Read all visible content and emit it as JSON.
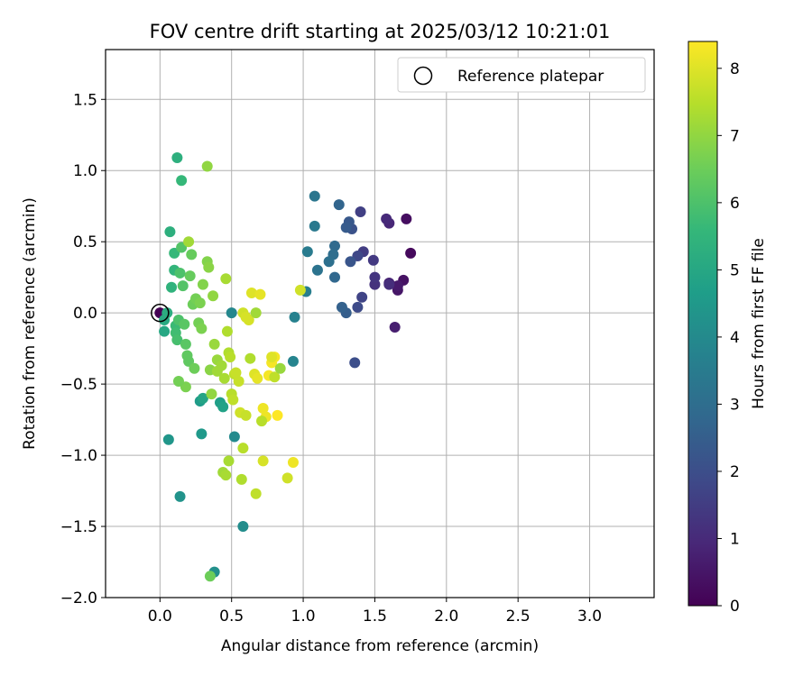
{
  "chart_data": {
    "type": "scatter",
    "title": "FOV centre drift starting at 2025/03/12 10:21:01",
    "xlabel": "Angular distance from reference (arcmin)",
    "ylabel": "Rotation from reference (arcmin)",
    "xlim": [
      -0.38,
      3.45
    ],
    "ylim": [
      -2.0,
      1.85
    ],
    "xticks": [
      0.0,
      0.5,
      1.0,
      1.5,
      2.0,
      2.5,
      3.0
    ],
    "xtick_labels": [
      "0.0",
      "0.5",
      "1.0",
      "1.5",
      "2.0",
      "2.5",
      "3.0"
    ],
    "yticks": [
      -2.0,
      -1.5,
      -1.0,
      -0.5,
      0.0,
      0.5,
      1.0,
      1.5
    ],
    "ytick_labels": [
      "−2.0",
      "−1.5",
      "−1.0",
      "−0.5",
      "0.0",
      "0.5",
      "1.0",
      "1.5"
    ],
    "grid": true,
    "legend": {
      "placement": "top-right",
      "entries": [
        {
          "label": "Reference platepar",
          "marker": "open-circle"
        }
      ]
    },
    "reference_point": [
      0.0,
      0.0
    ],
    "colorbar": {
      "label": "Hours from first FF file",
      "colormap": "viridis",
      "range": [
        0,
        8.4
      ],
      "ticks": [
        0,
        1,
        2,
        3,
        4,
        5,
        6,
        7,
        8
      ],
      "tick_labels": [
        "0",
        "1",
        "2",
        "3",
        "4",
        "5",
        "6",
        "7",
        "8"
      ]
    },
    "series": [
      {
        "points": [
          [
            0.0,
            0.0,
            0.0
          ],
          [
            1.75,
            0.42,
            0.2
          ],
          [
            1.72,
            0.66,
            0.3
          ],
          [
            1.7,
            0.23,
            0.4
          ],
          [
            1.66,
            0.16,
            0.5
          ],
          [
            1.66,
            0.19,
            0.6
          ],
          [
            1.64,
            -0.1,
            0.7
          ],
          [
            1.6,
            0.21,
            0.8
          ],
          [
            1.6,
            0.63,
            0.9
          ],
          [
            1.58,
            0.66,
            1.0
          ],
          [
            1.6,
            0.2,
            1.1
          ],
          [
            1.5,
            0.2,
            1.2
          ],
          [
            1.5,
            0.25,
            1.3
          ],
          [
            1.49,
            0.37,
            1.4
          ],
          [
            1.42,
            0.43,
            1.5
          ],
          [
            1.4,
            0.71,
            1.6
          ],
          [
            1.41,
            0.11,
            1.7
          ],
          [
            1.38,
            0.4,
            1.8
          ],
          [
            1.38,
            0.04,
            1.9
          ],
          [
            1.36,
            -0.35,
            2.0
          ],
          [
            1.34,
            0.59,
            2.1
          ],
          [
            1.33,
            0.36,
            2.2
          ],
          [
            1.32,
            0.64,
            2.3
          ],
          [
            1.3,
            0.6,
            2.4
          ],
          [
            1.3,
            0.0,
            2.5
          ],
          [
            1.27,
            0.04,
            2.6
          ],
          [
            1.25,
            0.76,
            2.7
          ],
          [
            1.22,
            0.25,
            2.8
          ],
          [
            1.22,
            0.47,
            2.9
          ],
          [
            1.21,
            0.41,
            3.0
          ],
          [
            1.18,
            0.36,
            3.1
          ],
          [
            1.1,
            0.3,
            3.2
          ],
          [
            1.08,
            0.82,
            3.3
          ],
          [
            1.08,
            0.61,
            3.4
          ],
          [
            1.03,
            0.43,
            3.5
          ],
          [
            1.02,
            0.15,
            3.6
          ],
          [
            0.94,
            -0.03,
            3.7
          ],
          [
            0.93,
            -0.34,
            3.8
          ],
          [
            0.5,
            0.0,
            3.9
          ],
          [
            0.52,
            -0.87,
            4.0
          ],
          [
            0.58,
            -1.5,
            4.1
          ],
          [
            0.38,
            -1.82,
            4.2
          ],
          [
            0.14,
            -1.29,
            4.3
          ],
          [
            0.06,
            -0.89,
            4.4
          ],
          [
            0.29,
            -0.85,
            4.5
          ],
          [
            0.28,
            -0.62,
            4.6
          ],
          [
            0.42,
            -0.63,
            4.7
          ],
          [
            0.44,
            -0.66,
            4.8
          ],
          [
            0.3,
            -0.6,
            4.9
          ],
          [
            0.03,
            -0.13,
            5.0
          ],
          [
            0.03,
            -0.05,
            5.1
          ],
          [
            0.05,
            0.0,
            5.2
          ],
          [
            0.07,
            0.57,
            5.3
          ],
          [
            0.08,
            0.18,
            5.4
          ],
          [
            0.1,
            0.3,
            5.5
          ],
          [
            0.1,
            0.42,
            5.6
          ],
          [
            0.11,
            -0.09,
            5.7
          ],
          [
            0.11,
            -0.14,
            5.8
          ],
          [
            0.12,
            -0.19,
            5.9
          ],
          [
            0.13,
            -0.05,
            6.0
          ],
          [
            0.14,
            0.28,
            6.0
          ],
          [
            0.15,
            0.46,
            6.1
          ],
          [
            0.16,
            0.19,
            6.1
          ],
          [
            0.17,
            -0.08,
            6.2
          ],
          [
            0.18,
            -0.22,
            6.2
          ],
          [
            0.19,
            -0.3,
            6.3
          ],
          [
            0.2,
            -0.34,
            6.3
          ],
          [
            0.21,
            0.26,
            6.4
          ],
          [
            0.22,
            0.41,
            6.4
          ],
          [
            0.23,
            0.06,
            6.5
          ],
          [
            0.24,
            -0.39,
            6.5
          ],
          [
            0.25,
            0.1,
            6.6
          ],
          [
            0.27,
            -0.07,
            6.6
          ],
          [
            0.28,
            0.07,
            6.7
          ],
          [
            0.29,
            -0.11,
            6.7
          ],
          [
            0.3,
            0.2,
            6.8
          ],
          [
            0.12,
            1.09,
            5.3
          ],
          [
            0.15,
            0.93,
            5.6
          ],
          [
            0.33,
            0.36,
            6.8
          ],
          [
            0.34,
            0.32,
            6.9
          ],
          [
            0.35,
            -0.4,
            6.9
          ],
          [
            0.36,
            -0.57,
            7.0
          ],
          [
            0.37,
            0.12,
            7.0
          ],
          [
            0.38,
            -0.22,
            7.1
          ],
          [
            0.4,
            -0.33,
            7.1
          ],
          [
            0.4,
            -0.41,
            7.2
          ],
          [
            0.43,
            -0.37,
            7.2
          ],
          [
            0.45,
            -0.46,
            7.3
          ],
          [
            0.46,
            0.24,
            7.3
          ],
          [
            0.47,
            -0.13,
            7.4
          ],
          [
            0.48,
            -0.28,
            7.4
          ],
          [
            0.49,
            -0.31,
            7.5
          ],
          [
            0.5,
            -0.57,
            7.5
          ],
          [
            0.51,
            -0.61,
            7.6
          ],
          [
            0.52,
            -0.43,
            7.6
          ],
          [
            0.53,
            -0.42,
            7.7
          ],
          [
            0.55,
            -0.48,
            7.7
          ],
          [
            0.56,
            -0.7,
            7.8
          ],
          [
            0.58,
            0.0,
            7.8
          ],
          [
            0.6,
            -0.03,
            7.9
          ],
          [
            0.62,
            -0.05,
            7.9
          ],
          [
            0.64,
            0.14,
            8.0
          ],
          [
            0.66,
            -0.43,
            8.0
          ],
          [
            0.68,
            -0.46,
            8.1
          ],
          [
            0.7,
            0.13,
            8.1
          ],
          [
            0.72,
            -0.67,
            8.2
          ],
          [
            0.74,
            -0.73,
            8.2
          ],
          [
            0.76,
            -0.44,
            8.3
          ],
          [
            0.78,
            -0.35,
            8.3
          ],
          [
            0.8,
            -0.31,
            8.3
          ],
          [
            0.82,
            -0.72,
            8.4
          ],
          [
            0.33,
            1.03,
            7.0
          ],
          [
            0.35,
            -1.85,
            6.5
          ],
          [
            0.18,
            -0.52,
            6.7
          ],
          [
            0.13,
            -0.48,
            6.6
          ],
          [
            0.44,
            -1.12,
            7.2
          ],
          [
            0.46,
            -1.14,
            7.3
          ],
          [
            0.48,
            -1.04,
            7.3
          ],
          [
            0.57,
            -1.17,
            7.4
          ],
          [
            0.58,
            -0.95,
            7.5
          ],
          [
            0.67,
            -1.27,
            7.6
          ],
          [
            0.71,
            -0.76,
            7.5
          ],
          [
            0.72,
            -1.04,
            7.9
          ],
          [
            0.89,
            -1.16,
            7.8
          ],
          [
            0.93,
            -1.05,
            8.2
          ],
          [
            0.8,
            -0.45,
            7.6
          ],
          [
            0.84,
            -0.39,
            7.1
          ],
          [
            0.67,
            0.0,
            7.2
          ],
          [
            0.6,
            -0.72,
            7.7
          ],
          [
            0.63,
            -0.32,
            7.4
          ],
          [
            0.2,
            0.5,
            7.2
          ],
          [
            0.78,
            -0.31,
            8.0
          ],
          [
            0.98,
            0.16,
            7.8
          ]
        ]
      }
    ]
  }
}
